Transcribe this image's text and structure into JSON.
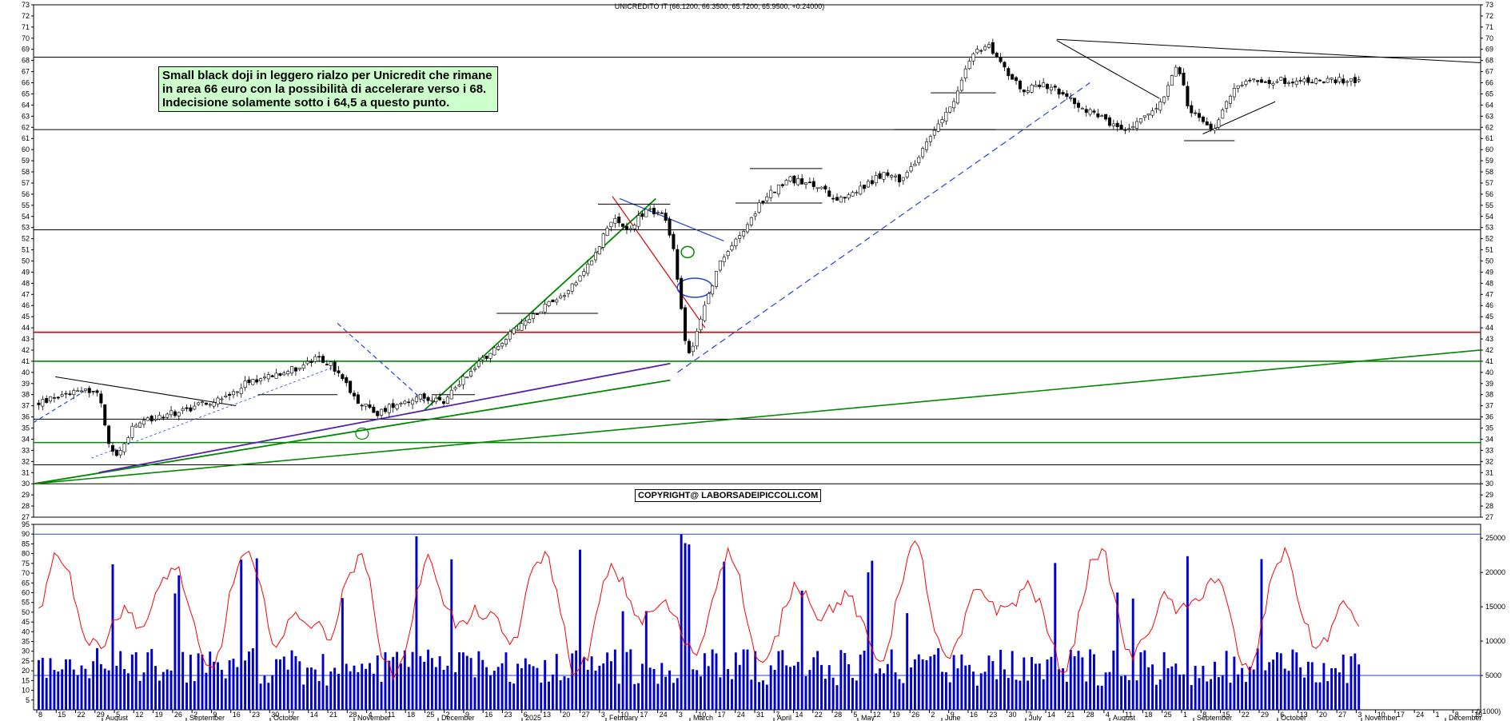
{
  "chart_data": {
    "type": "candlestick",
    "title": "UNICREDITO IT (66.1200, 66.3500, 65.7200, 65.9500, +0.24000)",
    "annotation": "Small black doji in leggero rialzo per Unicredit che rimane\nin area 66 euro con la possibilità di accelerare verso i 68.\nIndecisione solamente sotto i 64,5 a questo punto.",
    "copyright": "COPYRIGHT@ LABORSADEIPICCOLI.COM",
    "price_axis": {
      "ylim": [
        27,
        73
      ],
      "ticks": [
        27,
        28,
        29,
        30,
        31,
        32,
        33,
        34,
        35,
        36,
        37,
        38,
        39,
        40,
        41,
        42,
        43,
        44,
        45,
        46,
        47,
        48,
        49,
        50,
        51,
        52,
        53,
        54,
        55,
        56,
        57,
        58,
        59,
        60,
        61,
        62,
        63,
        64,
        65,
        66,
        67,
        68,
        69,
        70,
        71,
        72,
        73
      ]
    },
    "oscillator_axis": {
      "ylim": [
        0,
        95
      ],
      "ticks": [
        5,
        10,
        15,
        20,
        25,
        30,
        35,
        40,
        45,
        50,
        55,
        60,
        65,
        70,
        75,
        80,
        85,
        90,
        95
      ]
    },
    "volume_axis": {
      "ylim": [
        0,
        27000
      ],
      "ticks": [
        5000,
        10000,
        15000,
        20000,
        25000
      ],
      "unit_label": "(x1000)"
    },
    "x_day_labels": [
      "8",
      "15",
      "22",
      "29",
      "5",
      "12",
      "19",
      "26",
      "2",
      "9",
      "16",
      "23",
      "30",
      "7",
      "14",
      "21",
      "28",
      "4",
      "11",
      "18",
      "25",
      "2",
      "9",
      "16",
      "23",
      "6",
      "13",
      "20",
      "27",
      "3",
      "10",
      "17",
      "24",
      "3",
      "10",
      "17",
      "24",
      "31",
      "7",
      "14",
      "22",
      "28",
      "5",
      "12",
      "19",
      "26",
      "2",
      "9",
      "16",
      "23",
      "30",
      "7",
      "14",
      "21",
      "28",
      "4",
      "11",
      "18",
      "25",
      "1",
      "8",
      "15",
      "22",
      "29",
      "6",
      "13",
      "20",
      "27",
      "3",
      "10",
      "17",
      "24",
      "1",
      "8",
      "15"
    ],
    "x_month_labels": [
      "August",
      "September",
      "October",
      "November",
      "December",
      "2025",
      "February",
      "March",
      "April",
      "May",
      "June",
      "July",
      "August",
      "September",
      "October",
      "November",
      "December"
    ],
    "horizontal_lines": [
      {
        "price": 43.6,
        "color": "#dd0000"
      },
      {
        "price": 41.0,
        "color": "#008800"
      },
      {
        "price": 33.7,
        "color": "#008800"
      },
      {
        "price": 35.8,
        "color": "#000000"
      },
      {
        "price": 31.7,
        "color": "#000000"
      },
      {
        "price": 30.0,
        "color": "#000000"
      },
      {
        "price": 27.0,
        "color": "#000000"
      },
      {
        "price": 52.8,
        "color": "#000000"
      },
      {
        "price": 61.8,
        "color": "#000000"
      },
      {
        "price": 68.3,
        "color": "#000000"
      }
    ],
    "oscillator_level": 90,
    "volume_level": 5000,
    "colors": {
      "price": "#000000",
      "oscillator": "#ff0000",
      "volume": "#0000cc",
      "support": "#008800",
      "resistance": "#dd0000",
      "trend_blue": "#2244dd",
      "trend_purple": "#5522aa"
    }
  }
}
